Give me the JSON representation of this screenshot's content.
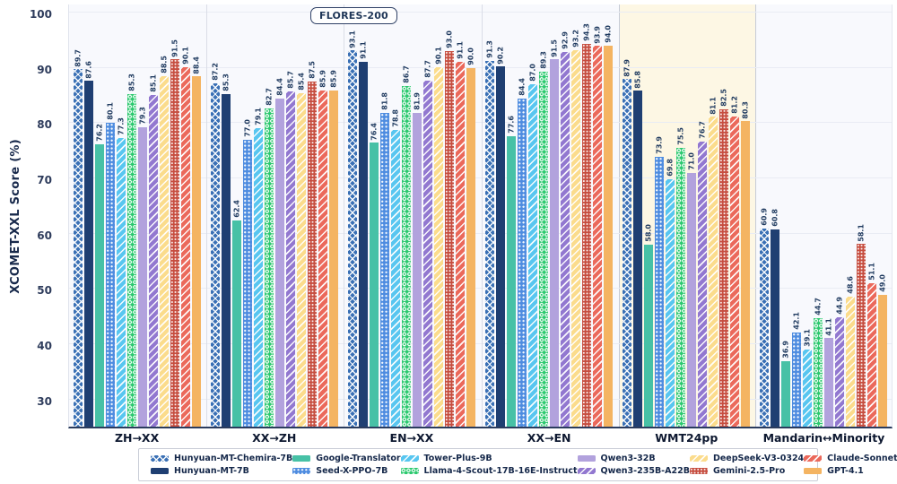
{
  "figure": {
    "title_badge": "FLORES-200",
    "ylabel": "XCOMET-XXL Score (%)"
  },
  "chart_data": {
    "type": "bar",
    "title": "FLORES-200",
    "ylabel": "XCOMET-XXL Score (%)",
    "ylim": [
      25.1,
      101.75
    ],
    "yticks": [
      30,
      40,
      50,
      60,
      70,
      80,
      90,
      100
    ],
    "grid": "horizontal",
    "legend_position": "bottom",
    "categories": [
      "ZH→XX",
      "XX→ZH",
      "EN→XX",
      "XX→EN",
      "WMT24pp",
      "Mandarin↔Minority"
    ],
    "highlighted_category": "WMT24pp",
    "highlight_color": "#fdf7e4",
    "series": [
      {
        "name": "Hunyuan-MT-Chemira-7B",
        "color": "#3a70b5",
        "pattern": "crosshatch",
        "values": [
          89.7,
          87.2,
          93.1,
          91.3,
          87.9,
          60.9
        ]
      },
      {
        "name": "Hunyuan-MT-7B",
        "color": "#1f3f72",
        "pattern": "solid",
        "values": [
          87.6,
          85.3,
          91.1,
          90.2,
          85.8,
          60.8
        ]
      },
      {
        "name": "Google-Translator",
        "color": "#47c1a6",
        "pattern": "solid",
        "values": [
          76.2,
          62.4,
          76.4,
          77.6,
          58.0,
          36.9
        ]
      },
      {
        "name": "Seed-X-PPO-7B",
        "color": "#4e8ce0",
        "pattern": "dots",
        "values": [
          80.1,
          77.0,
          81.8,
          84.4,
          73.9,
          42.1
        ]
      },
      {
        "name": "Tower-Plus-9B",
        "color": "#58c6f0",
        "pattern": "diag",
        "values": [
          77.3,
          79.1,
          78.8,
          87.0,
          69.8,
          39.1
        ]
      },
      {
        "name": "Llama-4-Scout-17B-16E-Instruct",
        "color": "#2bc96e",
        "pattern": "rings",
        "values": [
          85.3,
          82.7,
          86.7,
          89.3,
          75.5,
          44.7
        ]
      },
      {
        "name": "Qwen3-32B",
        "color": "#b2a2dd",
        "pattern": "solid",
        "values": [
          79.3,
          84.4,
          81.9,
          91.5,
          71.0,
          41.1
        ]
      },
      {
        "name": "Qwen3-235B-A22B",
        "color": "#9278d0",
        "pattern": "diag",
        "values": [
          85.1,
          85.7,
          87.7,
          92.9,
          76.7,
          44.9
        ]
      },
      {
        "name": "DeepSeek-V3-0324",
        "color": "#fbdc8c",
        "pattern": "diag",
        "values": [
          88.5,
          85.4,
          90.1,
          93.2,
          81.1,
          48.6
        ]
      },
      {
        "name": "Gemini-2.5-Pro",
        "color": "#c64d3f",
        "pattern": "dotgrid",
        "values": [
          91.5,
          87.5,
          93.0,
          94.3,
          82.5,
          58.1
        ]
      },
      {
        "name": "Claude-Sonnet-4",
        "color": "#eb695b",
        "pattern": "diag",
        "values": [
          90.1,
          85.9,
          91.1,
          93.9,
          81.2,
          51.1
        ]
      },
      {
        "name": "GPT-4.1",
        "color": "#f4b462",
        "pattern": "solid",
        "values": [
          88.4,
          85.9,
          90.0,
          94.0,
          80.3,
          49.0
        ]
      }
    ]
  }
}
